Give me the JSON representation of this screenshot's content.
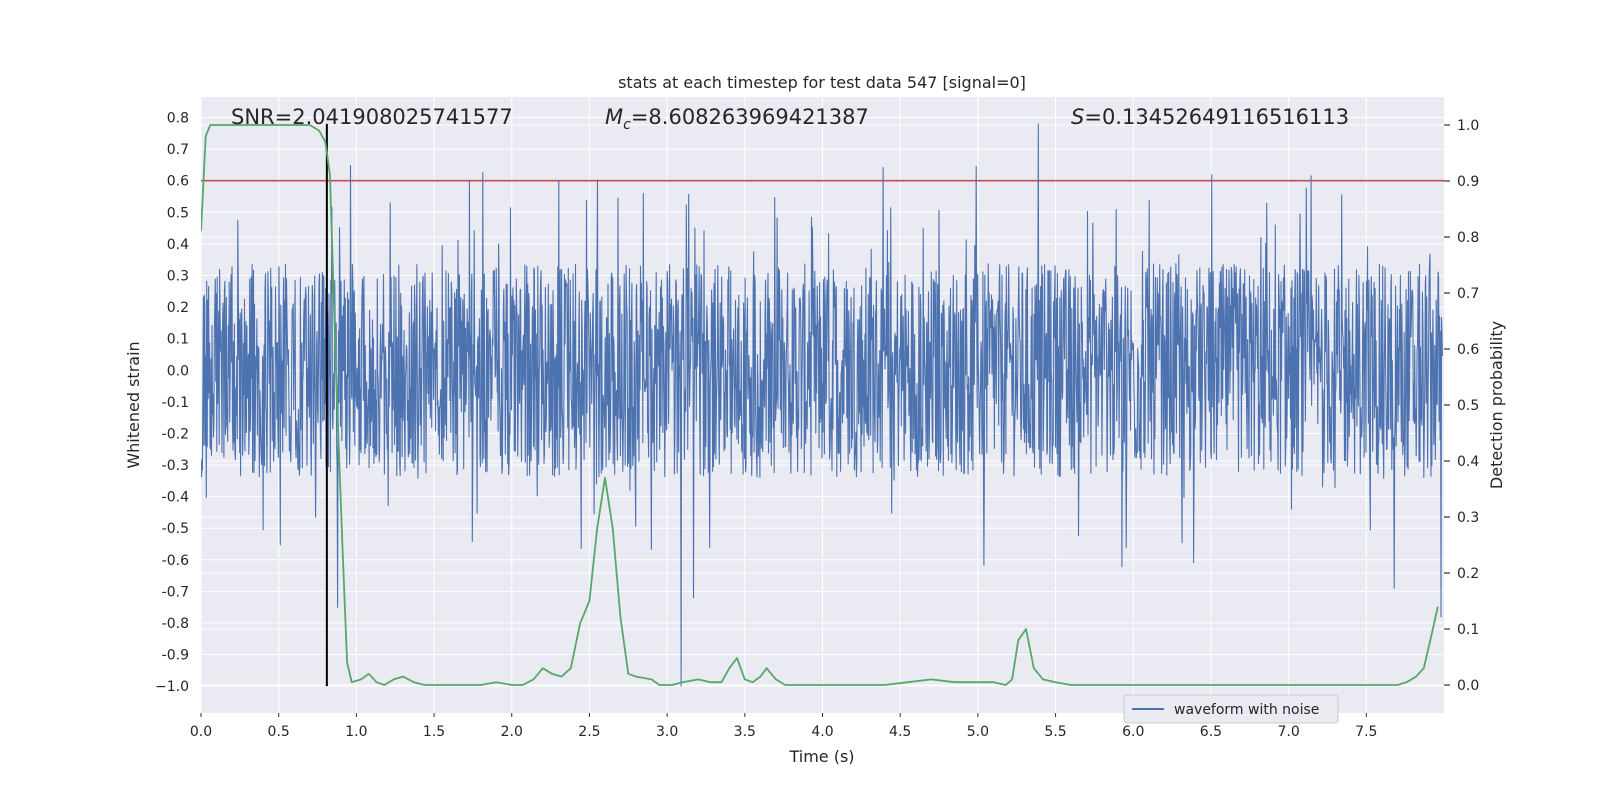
{
  "chart_data": {
    "type": "line",
    "title": "stats at each timestep for test data 547 [signal=0]",
    "xlabel": "Time (s)",
    "ylabel": "Whitened strain",
    "y2label": "Detection probability",
    "xlim": [
      0.0,
      8.0
    ],
    "ylim": [
      -1.085,
      0.865
    ],
    "y2lim": [
      -0.05,
      1.05
    ],
    "x_ticks": [
      0.0,
      0.5,
      1.0,
      1.5,
      2.0,
      2.5,
      3.0,
      3.5,
      4.0,
      4.5,
      5.0,
      5.5,
      6.0,
      6.5,
      7.0,
      7.5
    ],
    "x_tick_labels": [
      "0.0",
      "0.5",
      "1.0",
      "1.5",
      "2.0",
      "2.5",
      "3.0",
      "3.5",
      "4.0",
      "4.5",
      "5.0",
      "5.5",
      "6.0",
      "6.5",
      "7.0",
      "7.5"
    ],
    "y_ticks": [
      0.8,
      0.7,
      0.6,
      0.5,
      0.4,
      0.3,
      0.2,
      0.1,
      0.0,
      -0.1,
      -0.2,
      -0.3,
      -0.4,
      -0.5,
      -0.6,
      -0.7,
      -0.8,
      -0.9,
      -1.0
    ],
    "y_tick_labels": [
      "0.8",
      "0.7",
      "0.6",
      "0.5",
      "0.4",
      "0.3",
      "0.2",
      "0.1",
      "0.0",
      "-0.1",
      "-0.2",
      "-0.3",
      "-0.4",
      "-0.5",
      "-0.6",
      "-0.7",
      "-0.8",
      "-0.9",
      "−1.0"
    ],
    "y2_ticks": [
      1.0,
      0.9,
      0.8,
      0.7,
      0.6,
      0.5,
      0.4,
      0.3,
      0.2,
      0.1,
      0.0
    ],
    "y2_tick_labels": [
      "1.0",
      "0.9",
      "0.8",
      "0.7",
      "0.6",
      "0.5",
      "0.4",
      "0.3",
      "0.2",
      "0.1",
      "0.0"
    ],
    "grid": true,
    "series": [
      {
        "name": "waveform with noise",
        "axis": "left",
        "color": "#4c72b0",
        "kind": "dense noise waveform",
        "envelope": {
          "core_abs": 0.25,
          "typical_peak_abs": 0.45,
          "max": 0.78,
          "min": -1.0,
          "strong_spikes": [
            {
              "x": 0.88,
              "y": -0.75
            },
            {
              "x": 2.73,
              "y": -0.3
            },
            {
              "x": 3.09,
              "y": -1.0
            },
            {
              "x": 3.17,
              "y": -0.72
            },
            {
              "x": 5.39,
              "y": 0.78
            },
            {
              "x": 7.68,
              "y": -0.69
            },
            {
              "x": 7.98,
              "y": -0.78
            }
          ]
        }
      },
      {
        "axis": "right",
        "color": "#55a868",
        "x": [
          0.0,
          0.03,
          0.06,
          0.12,
          0.2,
          0.3,
          0.4,
          0.5,
          0.6,
          0.7,
          0.76,
          0.8,
          0.83,
          0.87,
          0.91,
          0.94,
          0.97,
          1.03,
          1.08,
          1.13,
          1.18,
          1.24,
          1.3,
          1.37,
          1.44,
          1.5,
          1.6,
          1.7,
          1.8,
          1.9,
          2.0,
          2.07,
          2.14,
          2.2,
          2.26,
          2.32,
          2.38,
          2.44,
          2.5,
          2.55,
          2.6,
          2.65,
          2.7,
          2.75,
          2.8,
          2.9,
          2.95,
          3.03,
          3.1,
          3.2,
          3.28,
          3.35,
          3.4,
          3.45,
          3.5,
          3.55,
          3.6,
          3.64,
          3.7,
          3.76,
          3.82,
          3.9,
          4.0,
          4.2,
          4.4,
          4.55,
          4.7,
          4.85,
          5.0,
          5.1,
          5.18,
          5.22,
          5.26,
          5.31,
          5.36,
          5.42,
          5.5,
          5.6,
          5.7,
          5.9,
          6.1,
          6.2,
          6.3,
          6.45,
          6.6,
          6.7,
          6.8,
          6.9,
          7.0,
          7.15,
          7.3,
          7.5,
          7.6,
          7.7,
          7.76,
          7.82,
          7.87,
          7.92,
          7.96
        ],
        "values": [
          0.81,
          0.98,
          1.0,
          1.0,
          1.0,
          1.0,
          1.0,
          1.0,
          1.0,
          1.0,
          0.99,
          0.97,
          0.91,
          0.55,
          0.25,
          0.04,
          0.005,
          0.01,
          0.02,
          0.005,
          0.0,
          0.01,
          0.015,
          0.005,
          0.0,
          0.0,
          0.0,
          0.0,
          0.0,
          0.005,
          0.0,
          0.0,
          0.01,
          0.03,
          0.02,
          0.015,
          0.03,
          0.11,
          0.15,
          0.28,
          0.37,
          0.28,
          0.12,
          0.02,
          0.015,
          0.01,
          0.0,
          0.0,
          0.005,
          0.01,
          0.005,
          0.005,
          0.03,
          0.048,
          0.01,
          0.005,
          0.015,
          0.03,
          0.01,
          0.0,
          0.0,
          0.0,
          0.0,
          0.0,
          0.0,
          0.005,
          0.01,
          0.005,
          0.005,
          0.005,
          0.0,
          0.01,
          0.08,
          0.1,
          0.03,
          0.01,
          0.005,
          0.0,
          0.0,
          0.0,
          0.0,
          0.0,
          0.0,
          0.0,
          0.0,
          0.0,
          0.0,
          0.0,
          0.0,
          0.0,
          0.0,
          0.0,
          0.0,
          0.0,
          0.005,
          0.015,
          0.03,
          0.09,
          0.14
        ]
      }
    ],
    "hlines": [
      {
        "axis": "left",
        "y": 0.6,
        "color": "#c44e52"
      }
    ],
    "vlines": [
      {
        "x": 0.81,
        "y_from": -1.0,
        "y_to": 0.78,
        "color": "#000000"
      }
    ],
    "annotations": {
      "snr": "SNR=2.041908025741577",
      "mc_symbol": "M",
      "mc_sub": "c",
      "mc_value": "=8.608263969421387",
      "s_symbol": "S",
      "s_value": "=0.13452649116516113"
    },
    "legend": {
      "placement": "lower right",
      "entries": [
        "waveform with noise"
      ]
    }
  }
}
